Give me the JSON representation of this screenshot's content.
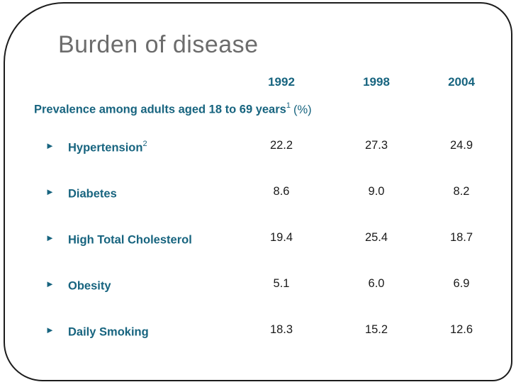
{
  "slide": {
    "title": "Burden of disease",
    "subtitle": {
      "text": "Prevalence among adults aged 18 to 69 years",
      "superscript": "1",
      "suffix": "(%)"
    },
    "bullet_glyph": "►",
    "columns": [
      "1992",
      "1998",
      "2004"
    ],
    "rows": [
      {
        "label": "Hypertension",
        "superscript": "2",
        "values": [
          "22.2",
          "27.3",
          "24.9"
        ]
      },
      {
        "label": "Diabetes",
        "superscript": "",
        "values": [
          "8.6",
          "9.0",
          "8.2"
        ]
      },
      {
        "label": "High Total Cholesterol",
        "superscript": "",
        "values": [
          "19.4",
          "25.4",
          "18.7"
        ]
      },
      {
        "label": "Obesity",
        "superscript": "",
        "values": [
          "5.1",
          "6.0",
          "6.9"
        ]
      },
      {
        "label": "Daily Smoking",
        "superscript": "",
        "values": [
          "18.3",
          "15.2",
          "12.6"
        ]
      }
    ],
    "colors": {
      "teal": "#17647F",
      "title_gray": "#6C6C6C",
      "value_black": "#1A1A1A",
      "border": "#1C1C1C"
    }
  },
  "chart_data": {
    "type": "table",
    "title": "Burden of disease",
    "subtitle": "Prevalence among adults aged 18 to 69 years (%)",
    "columns": [
      "1992",
      "1998",
      "2004"
    ],
    "rows": [
      {
        "label": "Hypertension",
        "values": [
          22.2,
          27.3,
          24.9
        ]
      },
      {
        "label": "Diabetes",
        "values": [
          8.6,
          9.0,
          8.2
        ]
      },
      {
        "label": "High Total Cholesterol",
        "values": [
          19.4,
          25.4,
          18.7
        ]
      },
      {
        "label": "Obesity",
        "values": [
          5.1,
          6.0,
          6.9
        ]
      },
      {
        "label": "Daily Smoking",
        "values": [
          18.3,
          15.2,
          12.6
        ]
      }
    ]
  }
}
